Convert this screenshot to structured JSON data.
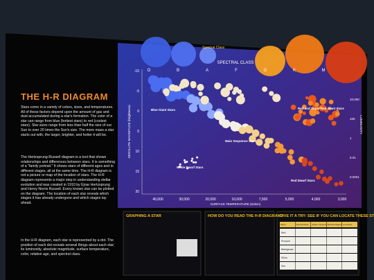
{
  "panel": {
    "title": "THE H-R DIAGRAM",
    "paragraphs": [
      "Stars come in a variety of colors, sizes, and temperatures. All of these factors depend upon the amount of gas and dust accumulated during a star's formation. The color of a star can range from blue (hottest stars) to red (coolest stars). Star sizes range from less than half the size of our Sun to over 20 times the Sun's size. The more mass a star starts out with, the larger, brighter, and hotter it will be.",
      "The Hertzsprung-Russell diagram is a tool that shows relationships and differences between stars. It is something of a \"family portrait.\" It shows stars of different ages and in different stages, all at the same time. The H-R diagram is not a picture or map of the location of stars. The H-R diagram represents a major step in understanding stellar evolution and was created in 1910 by Ejnar Hertzsprung and Henry Norris Russell. Every known star can be plotted on the diagram. The location of each star reveals which stages it has already undergone and which stages lay ahead.",
      "In the H-R diagram, each star is represented by a dot. The position of each dot reveals several things about each star; its luminosity, absolute magnitude, surface temperature, color, relative age, and spectral class."
    ]
  },
  "diagram": {
    "header": "SPECTRAL CLASS",
    "spectral_label": "Spectral Class",
    "spectral_classes": [
      "O",
      "B",
      "A",
      "F",
      "G",
      "K",
      "M"
    ],
    "y_axis_label": "ABSOLUTE MAGNITUDE (brightness)",
    "magnitude_ticks": [
      "-10",
      "-5",
      "0",
      "5",
      "10",
      "15",
      "20"
    ],
    "luminosity_label": "LUMINOSITY",
    "luminosity_ticks": [
      "10,000",
      "100",
      "1",
      "0.01",
      "0.0001"
    ],
    "x_axis_label": "SURFACE TEMPERATURE (Kelvin)",
    "temperature_ticks": [
      "40,000",
      "30,000",
      "20,000",
      "10,000",
      "7,500",
      "5,000",
      "4,000",
      "3,000"
    ],
    "regions": [
      "Blue Giant Stars",
      "Main Sequence Stars",
      "Red and Super Red Giant Stars",
      "White Dwarf Stars",
      "Red Dwarf Stars"
    ]
  },
  "sections": [
    {
      "title": "GRAPHING A STAR"
    },
    {
      "title": "HOW DO YOU READ THE H-R DIAGRAM?"
    },
    {
      "title": "GIVE IT A TRY: SEE IF YOU CAN LOCATE THESE STARS",
      "table": {
        "headers": [
          "Name",
          "Spectral Class",
          "Surface Temperature (Kelvin)",
          "Absolute Magnitude",
          "Luminosity"
        ],
        "rows": [
          "Red",
          "Procyon",
          "Betelgeuse",
          "Sirius",
          "Sun"
        ]
      }
    }
  ]
}
